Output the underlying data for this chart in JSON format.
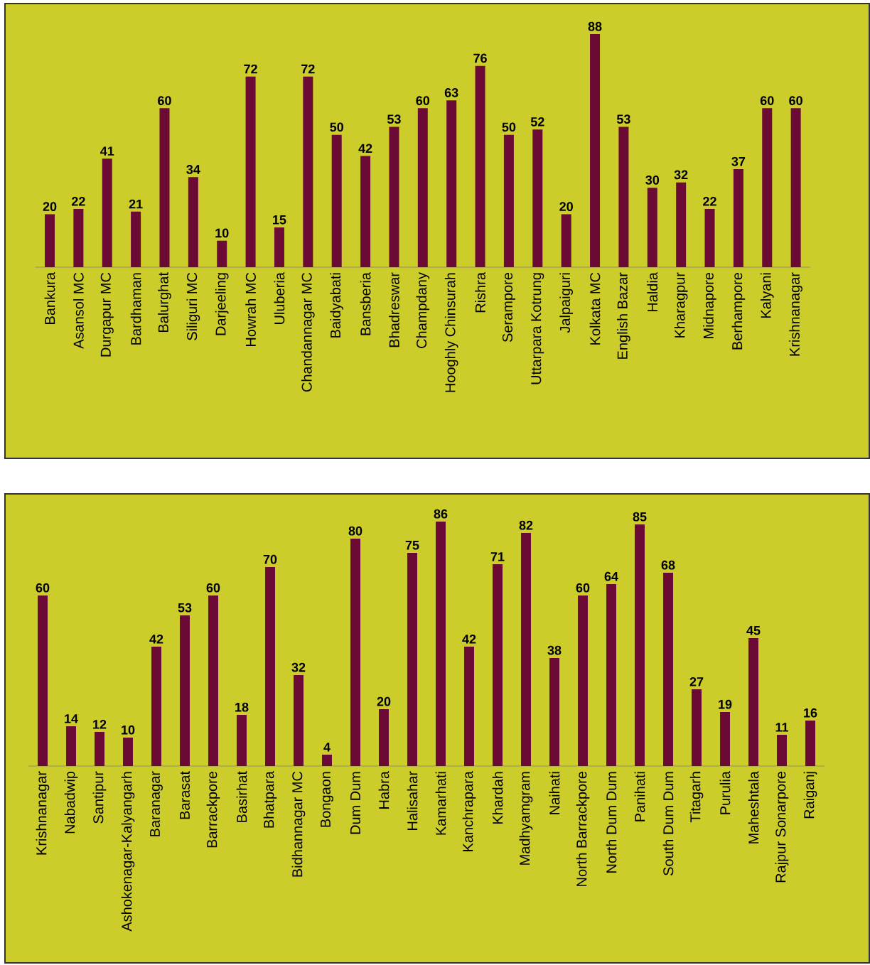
{
  "chart_data": [
    {
      "type": "bar",
      "categories": [
        "Bankura",
        "Asansol MC",
        "Durgapur MC",
        "Bardhaman",
        "Balurghat",
        "Siliguri MC",
        "Darjeeling",
        "Howrah MC",
        "Uluberia",
        "Chandannagar MC",
        "Baidyabati",
        "Bansberia",
        "Bhadreswar",
        "Champdany",
        "Hooghly Chinsurah",
        "Rishra",
        "Serampore",
        "Uttarpara Kotrung",
        "Jalpaiguri",
        "Kolkata MC",
        "English Bazar",
        "Haldia",
        "Kharagpur",
        "Midnapore",
        "Berhampore",
        "Kalyani",
        "Krishnanagar"
      ],
      "values": [
        20,
        22,
        41,
        21,
        60,
        34,
        10,
        72,
        15,
        72,
        50,
        42,
        53,
        60,
        63,
        76,
        50,
        52,
        20,
        88,
        53,
        30,
        32,
        22,
        37,
        60,
        60
      ],
      "color": "#6b0a35",
      "data_labels": true
    },
    {
      "type": "bar",
      "categories": [
        "Krishnanagar",
        "Nabadwip",
        "Santipur",
        "Ashokenagar-Kalyangarh",
        "Baranagar",
        "Barasat",
        "Barrackpore",
        "Basirhat",
        "Bhatpara",
        "Bidhannagar MC",
        "Bongaon",
        "Dum Dum",
        "Habra",
        "Halisahar",
        "Kamarhati",
        "Kanchrapara",
        "Khardah",
        "Madhyamgram",
        "Naihati",
        "North Barrackpore",
        "North Dum Dum",
        "Panihati",
        "South Dum Dum",
        "Titagarh",
        "Purulia",
        "Maheshtala",
        "Rajpur Sonarpore",
        "Raiganj"
      ],
      "values": [
        60,
        14,
        12,
        10,
        42,
        53,
        60,
        18,
        70,
        32,
        4,
        80,
        20,
        75,
        86,
        42,
        71,
        82,
        38,
        60,
        64,
        85,
        68,
        27,
        19,
        45,
        11,
        16
      ],
      "color": "#6b0a35",
      "data_labels": true
    }
  ]
}
